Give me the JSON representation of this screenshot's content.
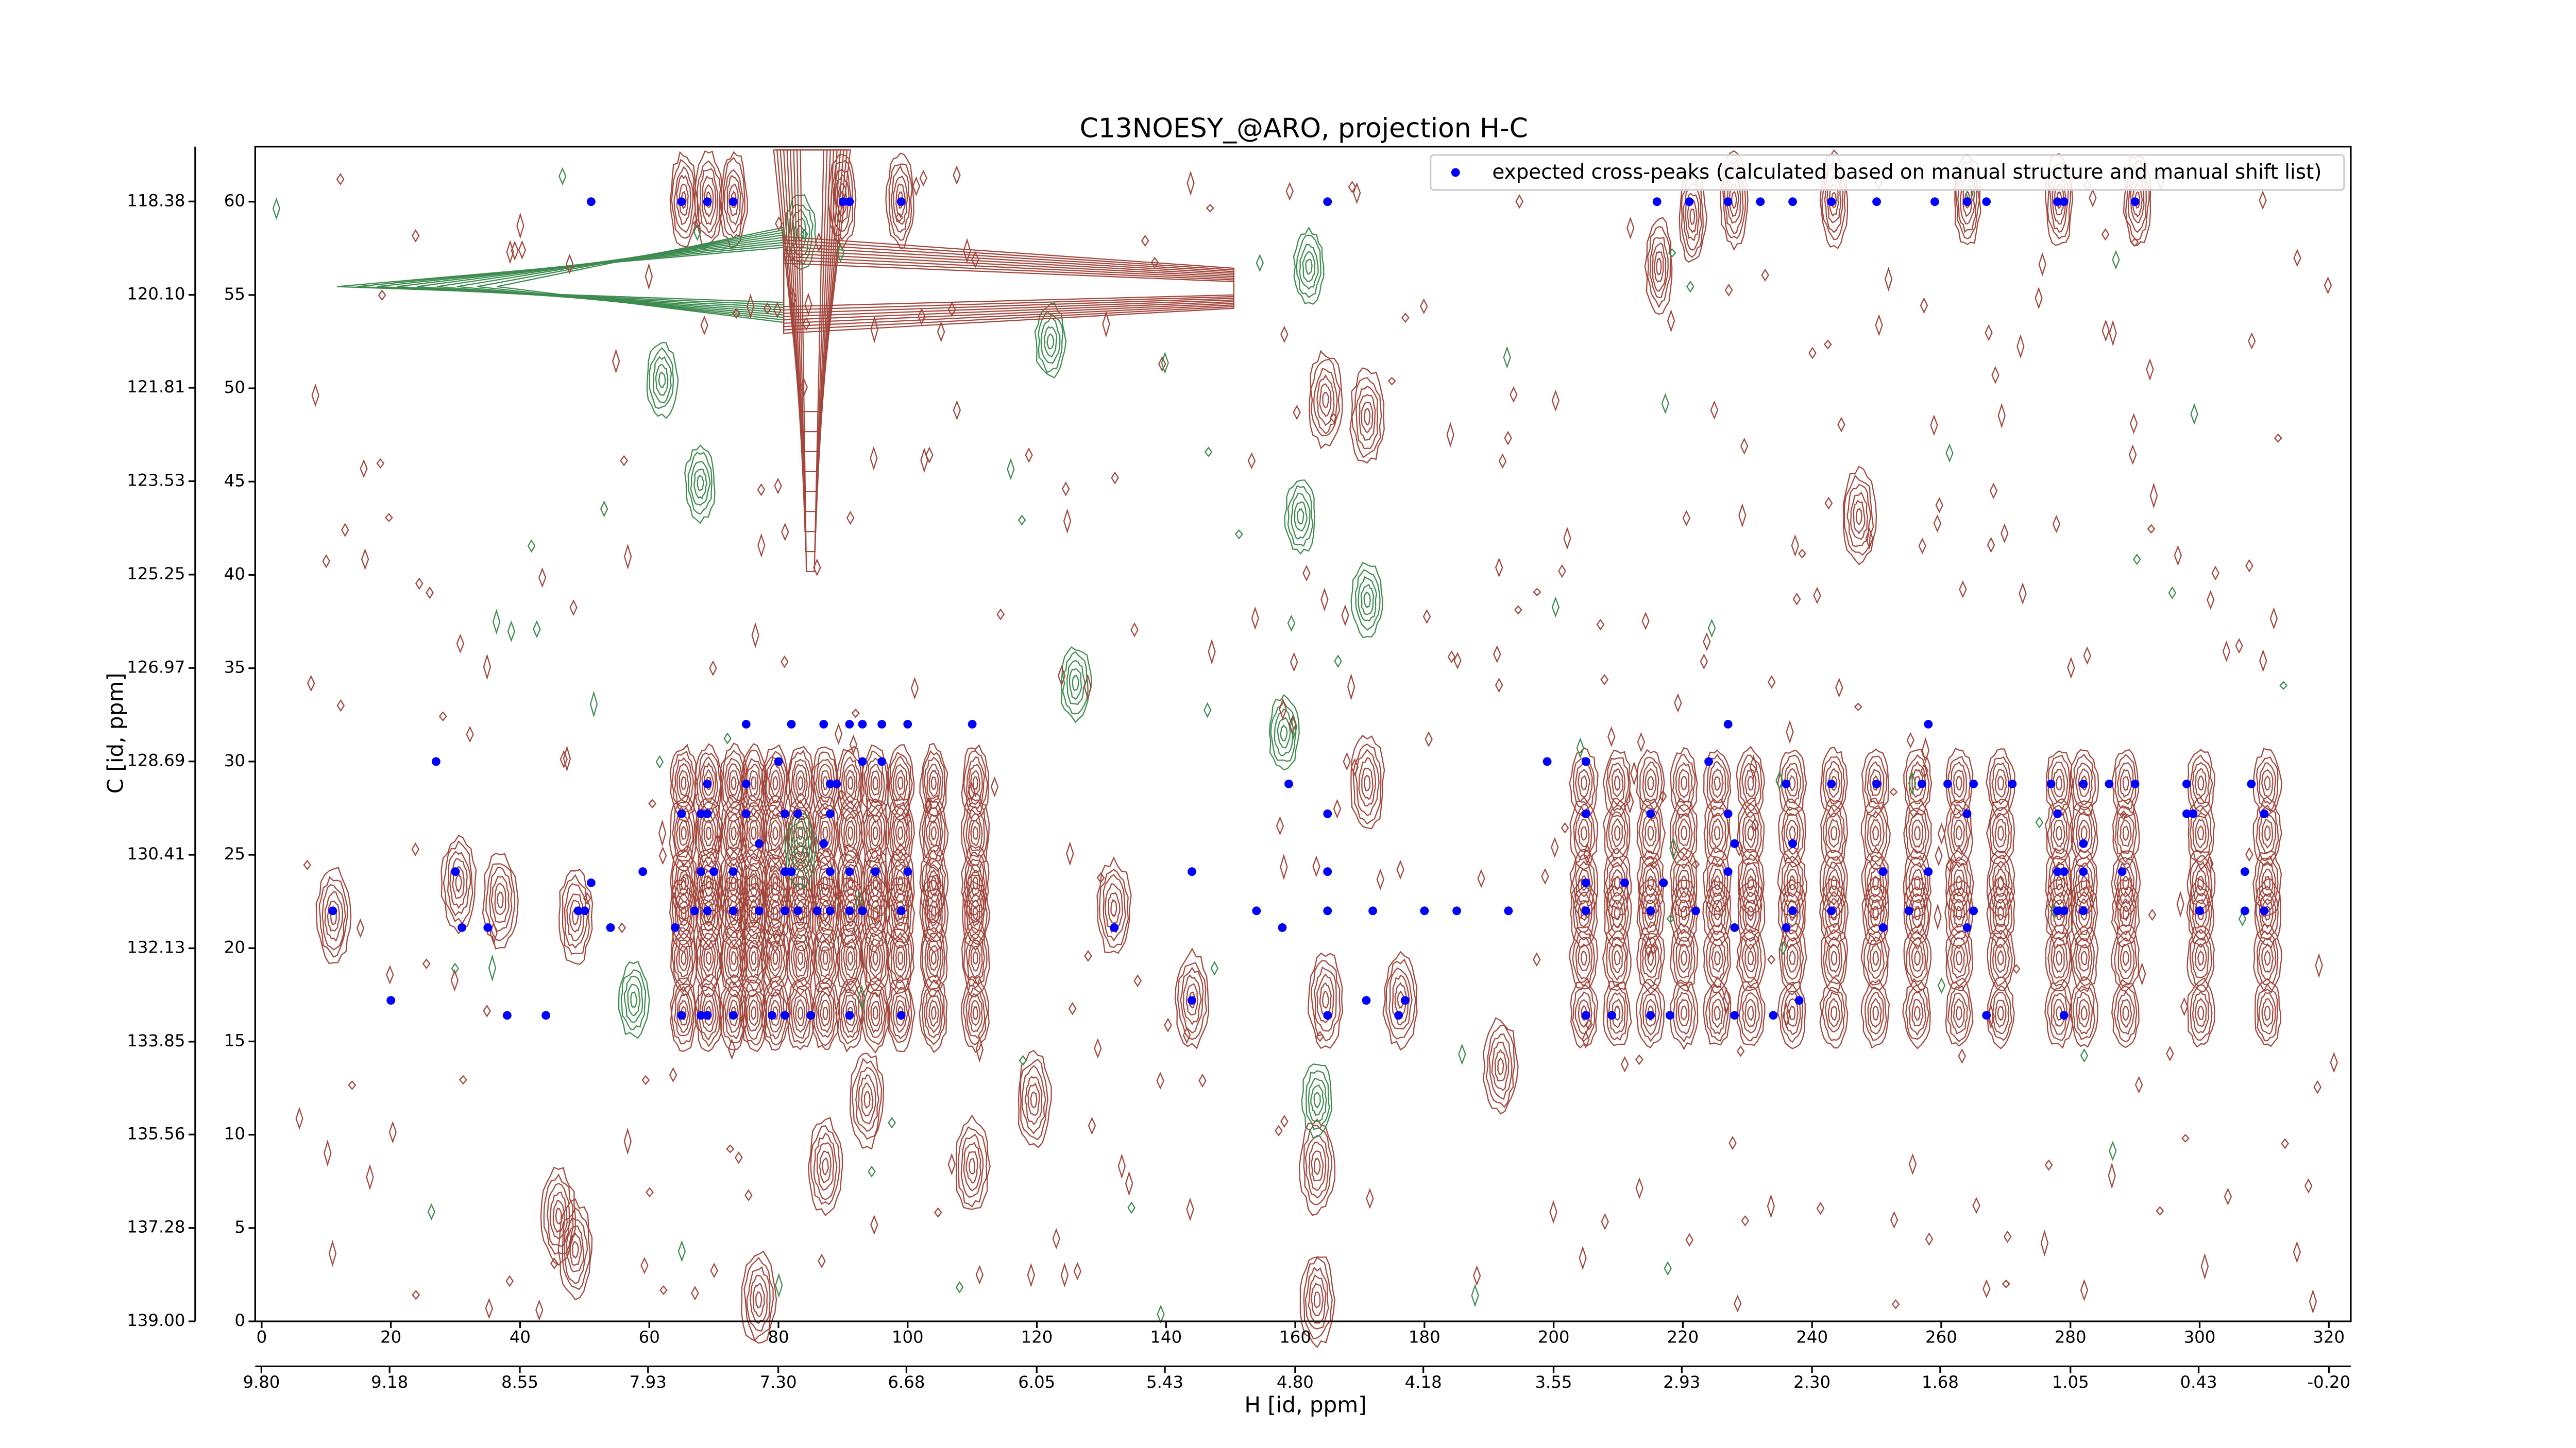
{
  "chart_data": {
    "type": "scatter",
    "title": "C13NOESY_@ARO, projection H-C",
    "xlabel": "H [id, ppm]",
    "ylabel": "C [id, ppm]",
    "xlim": [
      -1,
      323.4
    ],
    "xticks": [
      0,
      20,
      40,
      60,
      80,
      100,
      120,
      140,
      160,
      180,
      200,
      220,
      240,
      260,
      280,
      300,
      320
    ],
    "x2lim": [
      9.83,
      -0.306
    ],
    "x2ticks": [
      {
        "value": 9.8,
        "label": "9.80"
      },
      9.18,
      8.55,
      7.93,
      {
        "value": 7.3,
        "label": "7.30"
      },
      6.68,
      6.05,
      5.43,
      {
        "value": 4.8,
        "label": "4.80"
      },
      4.18,
      3.55,
      2.93,
      {
        "value": 2.3,
        "label": "2.30"
      },
      1.68,
      1.05,
      0.43,
      {
        "value": -0.2,
        "label": "-0.20"
      }
    ],
    "ylim": [
      0,
      62.95
    ],
    "yticks": [
      0,
      5,
      10,
      15,
      20,
      25,
      30,
      35,
      40,
      45,
      50,
      55,
      60
    ],
    "y2lim": [
      139,
      117.37
    ],
    "y2ticks": [
      {
        "value": 139,
        "label": "139.00"
      },
      137.28,
      135.56,
      133.85,
      132.13,
      130.41,
      128.69,
      126.97,
      125.25,
      123.53,
      121.81,
      {
        "value": 120.1,
        "label": "120.10"
      },
      118.38
    ],
    "legend": "upper right",
    "series": [
      {
        "name": "expected cross-peaks (calculated based on manual structure and manual shift list)",
        "color": "#0000ff",
        "x": [
          51,
          65,
          69,
          73,
          90,
          91,
          99,
          165,
          216,
          221,
          227,
          232,
          237,
          243,
          250,
          259,
          264,
          267,
          278,
          279,
          290,
          75,
          82,
          87,
          91,
          93,
          96,
          100,
          110,
          227,
          258,
          27,
          80,
          93,
          96,
          199,
          205,
          224,
          69,
          75,
          88,
          89,
          159,
          236,
          243,
          250,
          257,
          261,
          265,
          271,
          277,
          282,
          286,
          290,
          298,
          308,
          65,
          68,
          69,
          75,
          81,
          83,
          88,
          165,
          205,
          215,
          227,
          264,
          278,
          298,
          299,
          310,
          77,
          87,
          228,
          237,
          282,
          30,
          59,
          68,
          70,
          73,
          81,
          82,
          88,
          91,
          95,
          100,
          144,
          165,
          227,
          251,
          258,
          278,
          279,
          282,
          288,
          307,
          51,
          205,
          211,
          217,
          11,
          49,
          50,
          67,
          69,
          73,
          77,
          81,
          83,
          86,
          88,
          91,
          93,
          99,
          154,
          165,
          172,
          180,
          185,
          193,
          205,
          215,
          222,
          237,
          243,
          255,
          265,
          278,
          279,
          282,
          300,
          307,
          310,
          31,
          35,
          54,
          64,
          132,
          158,
          228,
          236,
          251,
          264,
          38,
          44,
          65,
          68,
          69,
          73,
          79,
          81,
          85,
          91,
          99,
          165,
          176,
          205,
          209,
          215,
          218,
          228,
          234,
          267,
          279,
          20,
          144,
          171,
          177,
          238
        ],
        "values": [
          60,
          60,
          60,
          60,
          60,
          60,
          60,
          60,
          60,
          60,
          60,
          60,
          60,
          60,
          60,
          60,
          60,
          60,
          60,
          60,
          60,
          32,
          32,
          32,
          32,
          32,
          32,
          32,
          32,
          32,
          32,
          30,
          30,
          30,
          30,
          30,
          30,
          30,
          28.8,
          28.8,
          28.8,
          28.8,
          28.8,
          28.8,
          28.8,
          28.8,
          28.8,
          28.8,
          28.8,
          28.8,
          28.8,
          28.8,
          28.8,
          28.8,
          28.8,
          28.8,
          27.2,
          27.2,
          27.2,
          27.2,
          27.2,
          27.2,
          27.2,
          27.2,
          27.2,
          27.2,
          27.2,
          27.2,
          27.2,
          27.2,
          27.2,
          27.2,
          25.6,
          25.6,
          25.6,
          25.6,
          25.6,
          24.1,
          24.1,
          24.1,
          24.1,
          24.1,
          24.1,
          24.1,
          24.1,
          24.1,
          24.1,
          24.1,
          24.1,
          24.1,
          24.1,
          24.1,
          24.1,
          24.1,
          24.1,
          24.1,
          24.1,
          24.1,
          23.5,
          23.5,
          23.5,
          23.5,
          22,
          22,
          22,
          22,
          22,
          22,
          22,
          22,
          22,
          22,
          22,
          22,
          22,
          22,
          22,
          22,
          22,
          22,
          22,
          22,
          22,
          22,
          22,
          22,
          22,
          22,
          22,
          22,
          22,
          22,
          22,
          22,
          22,
          21.1,
          21.1,
          21.1,
          21.1,
          21.1,
          21.1,
          21.1,
          21.1,
          21.1,
          21.1,
          16.4,
          16.4,
          16.4,
          16.4,
          16.4,
          16.4,
          16.4,
          16.4,
          16.4,
          16.4,
          16.4,
          16.4,
          16.4,
          16.4,
          16.4,
          16.4,
          16.4,
          16.4,
          16.4,
          16.4,
          16.4,
          17.2,
          17.2,
          17.2,
          17.2,
          17.2
        ]
      }
    ]
  }
}
